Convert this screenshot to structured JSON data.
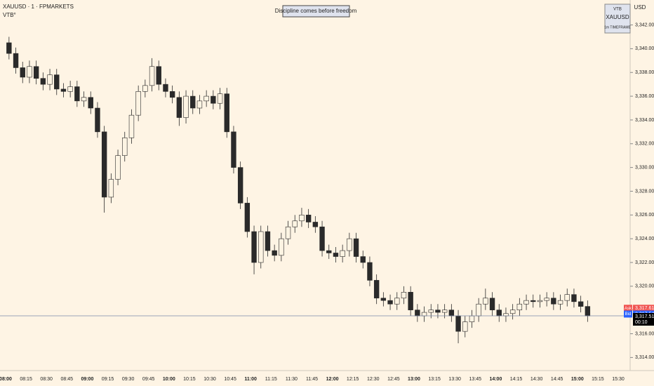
{
  "chart_data": {
    "type": "candlestick",
    "title": "XAUUSD · 1 · FPMARKETS",
    "indicator": "VTB°",
    "note": "Discipline comes before freedom",
    "info_box": [
      "VTB",
      "XAUUSD",
      "1m TIMEFRAME"
    ],
    "currency": "USD",
    "x": [
      "08:00",
      "08:05",
      "08:10",
      "08:15",
      "08:20",
      "08:25",
      "08:30",
      "08:35",
      "08:40",
      "08:45",
      "08:50",
      "08:55",
      "09:00",
      "09:05",
      "09:10",
      "09:15",
      "09:20",
      "09:25",
      "09:30",
      "09:35",
      "09:40",
      "09:45",
      "09:50",
      "09:55",
      "10:00",
      "10:05",
      "10:10",
      "10:15",
      "10:20",
      "10:25",
      "10:30",
      "10:35",
      "10:40",
      "10:45",
      "10:50",
      "10:55",
      "11:00",
      "11:05",
      "11:10",
      "11:15",
      "11:20",
      "11:25",
      "11:30",
      "11:35",
      "11:40",
      "11:45",
      "11:50",
      "11:55",
      "12:00",
      "12:05",
      "12:10",
      "12:15",
      "12:20",
      "12:25",
      "12:30",
      "12:35",
      "12:40",
      "12:45",
      "12:50",
      "12:55",
      "13:00",
      "13:05",
      "13:10",
      "13:15",
      "13:20",
      "13:25",
      "13:30",
      "13:35",
      "13:40",
      "13:45",
      "13:50",
      "13:55",
      "14:00",
      "14:05",
      "14:10",
      "14:15",
      "14:20",
      "14:25",
      "14:30",
      "14:35",
      "14:40",
      "14:45",
      "14:50",
      "14:55",
      "15:00",
      "15:05"
    ],
    "open": [
      3340.5,
      3339.6,
      3338.4,
      3337.6,
      3338.5,
      3337.5,
      3337.0,
      3337.8,
      3336.6,
      3336.4,
      3336.8,
      3335.6,
      3335.9,
      3335.0,
      3333.0,
      3327.5,
      3329.0,
      3331.0,
      3332.5,
      3334.4,
      3336.4,
      3336.9,
      3338.5,
      3337.0,
      3336.4,
      3335.9,
      3334.2,
      3336.0,
      3335.0,
      3335.6,
      3336.0,
      3335.4,
      3336.2,
      3333.0,
      3330.0,
      3327.0,
      3324.6,
      3322.0,
      3324.6,
      3323.0,
      3322.6,
      3324.0,
      3325.0,
      3325.5,
      3326.0,
      3325.4,
      3325.0,
      3323.0,
      3322.8,
      3322.5,
      3323.0,
      3324.0,
      3322.5,
      3322.0,
      3320.5,
      3319.0,
      3318.8,
      3318.5,
      3319.0,
      3319.5,
      3318.0,
      3317.5,
      3317.8,
      3318.0,
      3317.8,
      3318.0,
      3317.5,
      3316.2,
      3317.0,
      3317.5,
      3318.5,
      3319.0,
      3318.0,
      3317.5,
      3317.7,
      3318.0,
      3318.5,
      3318.8,
      3318.7,
      3318.8,
      3319.0,
      3318.5,
      3318.8,
      3319.3,
      3318.7,
      3318.3
    ],
    "high": [
      3341.0,
      3340.1,
      3338.9,
      3339.0,
      3339.0,
      3338.0,
      3338.3,
      3338.3,
      3337.1,
      3337.3,
      3337.3,
      3336.4,
      3336.4,
      3335.5,
      3333.5,
      3329.5,
      3331.5,
      3333.0,
      3334.9,
      3336.9,
      3337.4,
      3339.2,
      3339.0,
      3337.5,
      3336.9,
      3336.4,
      3336.5,
      3336.5,
      3336.1,
      3336.5,
      3336.5,
      3336.7,
      3336.7,
      3333.5,
      3330.5,
      3327.5,
      3325.1,
      3325.1,
      3325.1,
      3323.5,
      3324.5,
      3325.5,
      3326.0,
      3326.6,
      3326.5,
      3325.9,
      3325.5,
      3323.5,
      3323.3,
      3323.5,
      3324.5,
      3324.5,
      3323.0,
      3322.5,
      3321.0,
      3319.5,
      3319.3,
      3319.5,
      3320.0,
      3320.0,
      3318.5,
      3318.3,
      3318.5,
      3318.5,
      3318.5,
      3318.5,
      3318.0,
      3317.5,
      3318.0,
      3319.0,
      3319.8,
      3319.5,
      3318.5,
      3318.2,
      3318.5,
      3319.0,
      3319.3,
      3319.3,
      3319.3,
      3319.5,
      3319.5,
      3319.3,
      3319.8,
      3319.8,
      3319.2,
      3318.8
    ],
    "low": [
      3339.1,
      3337.9,
      3337.1,
      3337.1,
      3337.0,
      3336.5,
      3336.5,
      3336.1,
      3335.9,
      3335.9,
      3335.1,
      3335.1,
      3334.5,
      3332.5,
      3326.2,
      3327.0,
      3328.5,
      3330.5,
      3332.0,
      3333.9,
      3335.9,
      3336.4,
      3336.5,
      3335.9,
      3335.4,
      3333.5,
      3333.7,
      3334.5,
      3334.5,
      3335.1,
      3334.9,
      3334.9,
      3332.5,
      3329.5,
      3326.5,
      3324.1,
      3321.0,
      3321.5,
      3322.5,
      3322.1,
      3322.1,
      3323.5,
      3324.5,
      3325.0,
      3324.9,
      3324.5,
      3322.5,
      3322.3,
      3322.0,
      3322.0,
      3322.5,
      3322.0,
      3321.5,
      3320.0,
      3318.5,
      3318.3,
      3318.0,
      3318.0,
      3318.5,
      3317.5,
      3317.0,
      3317.0,
      3317.3,
      3317.3,
      3317.3,
      3317.0,
      3315.2,
      3315.7,
      3316.5,
      3317.0,
      3318.0,
      3317.5,
      3317.0,
      3317.0,
      3317.2,
      3317.5,
      3318.0,
      3318.2,
      3318.2,
      3318.3,
      3318.0,
      3318.0,
      3318.3,
      3318.2,
      3317.8,
      3317.0
    ],
    "close": [
      3339.6,
      3338.4,
      3337.6,
      3338.5,
      3337.5,
      3337.0,
      3337.8,
      3336.6,
      3336.4,
      3336.8,
      3335.6,
      3335.9,
      3335.0,
      3333.0,
      3327.5,
      3329.0,
      3331.0,
      3332.5,
      3334.4,
      3336.4,
      3336.9,
      3338.5,
      3337.0,
      3336.4,
      3335.9,
      3334.2,
      3336.0,
      3335.0,
      3335.6,
      3336.0,
      3335.4,
      3336.2,
      3333.0,
      3330.0,
      3327.0,
      3324.6,
      3322.0,
      3324.6,
      3323.0,
      3322.6,
      3324.0,
      3325.0,
      3325.5,
      3326.0,
      3325.4,
      3325.0,
      3323.0,
      3322.8,
      3322.5,
      3323.0,
      3324.0,
      3322.5,
      3322.0,
      3320.5,
      3319.0,
      3318.8,
      3318.5,
      3319.0,
      3319.5,
      3318.0,
      3317.5,
      3317.8,
      3318.0,
      3317.8,
      3318.0,
      3317.5,
      3316.2,
      3317.0,
      3317.5,
      3318.5,
      3319.0,
      3318.0,
      3317.5,
      3317.7,
      3318.0,
      3318.5,
      3318.8,
      3318.7,
      3318.8,
      3319.0,
      3318.5,
      3318.8,
      3319.3,
      3318.7,
      3318.3,
      3317.5
    ],
    "up_color": "#fdf4e3",
    "down_color": "#2a2a2a",
    "ylim": [
      3312.9,
      3344.1
    ],
    "yticks": [
      {
        "value": 3314,
        "label": "3,314.00"
      },
      {
        "value": 3316,
        "label": "3,316.00"
      },
      {
        "value": 3318,
        "label": "3,318.00"
      },
      {
        "value": 3320,
        "label": "3,320.00"
      },
      {
        "value": 3322,
        "label": "3,322.00"
      },
      {
        "value": 3324,
        "label": "3,324.00"
      },
      {
        "value": 3326,
        "label": "3,326.00"
      },
      {
        "value": 3328,
        "label": "3,328.00"
      },
      {
        "value": 3330,
        "label": "3,330.00"
      },
      {
        "value": 3332,
        "label": "3,332.00"
      },
      {
        "value": 3334,
        "label": "3,334.00"
      },
      {
        "value": 3336,
        "label": "3,336.00"
      },
      {
        "value": 3338,
        "label": "3,338.00"
      },
      {
        "value": 3340,
        "label": "3,340.00"
      },
      {
        "value": 3342,
        "label": "3,342.00"
      }
    ],
    "xticks": [
      "08:00",
      "08:15",
      "08:30",
      "08:45",
      "09:00",
      "09:15",
      "09:30",
      "09:45",
      "10:00",
      "10:15",
      "10:30",
      "10:45",
      "11:00",
      "11:15",
      "11:30",
      "11:45",
      "12:00",
      "12:15",
      "12:30",
      "12:45",
      "13:00",
      "13:15",
      "13:30",
      "13:45",
      "14:00",
      "14:15",
      "14:30",
      "14:45",
      "15:00",
      "15:15",
      "15:30"
    ],
    "quotes": [
      {
        "name": "Ask",
        "value": 3317.61,
        "value_label": "3,317.61",
        "color": "#f0524f"
      },
      {
        "name": "Bid",
        "value": 3317.54,
        "value_label": "3,317.54",
        "color": "#2962ff"
      }
    ],
    "last_price": {
      "value": 3317.51,
      "value_label": "3,317.51",
      "countdown": "00:10",
      "color": "#000000"
    }
  }
}
